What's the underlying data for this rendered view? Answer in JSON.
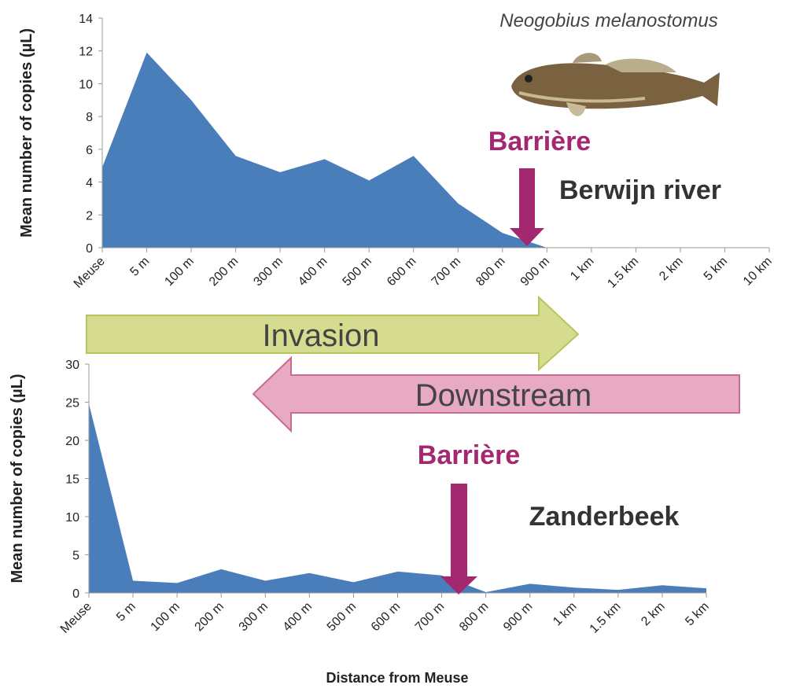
{
  "chart_data": [
    {
      "type": "area",
      "color": "#4a7ebb",
      "y_label": "Mean number of copies (µL)",
      "categories": [
        "Meuse",
        "5 m",
        "100 m",
        "200 m",
        "300 m",
        "400 m",
        "500 m",
        "600 m",
        "700 m",
        "800 m",
        "900 m",
        "1 km",
        "1.5 km",
        "2 km",
        "5 km",
        "10 km"
      ],
      "values": [
        4.9,
        11.9,
        9.0,
        5.6,
        4.6,
        5.4,
        4.1,
        5.6,
        2.7,
        0.9,
        0,
        0,
        0,
        0,
        0,
        0
      ],
      "ylim": [
        0,
        14
      ],
      "yticks": [
        0,
        2,
        4,
        6,
        8,
        10,
        12,
        14
      ],
      "annotations": [
        "Neogobius melanostomus",
        "Barrière",
        "Berwijn river",
        "Invasion"
      ]
    },
    {
      "type": "area",
      "color": "#4a7ebb",
      "y_label": "Mean number of copies (µL)",
      "x_label": "Distance from Meuse",
      "categories": [
        "Meuse",
        "5 m",
        "100 m",
        "200 m",
        "300 m",
        "400 m",
        "500 m",
        "600 m",
        "700 m",
        "800 m",
        "900 m",
        "1 km",
        "1.5 km",
        "2 km",
        "5 km"
      ],
      "values": [
        24.8,
        1.6,
        1.3,
        3.1,
        1.6,
        2.6,
        1.4,
        2.8,
        2.3,
        0.1,
        1.2,
        0.7,
        0.4,
        1.0,
        0.6
      ],
      "ylim": [
        0,
        30
      ],
      "yticks": [
        0,
        5,
        10,
        15,
        20,
        25,
        30
      ],
      "annotations": [
        "Downstream",
        "Barrière",
        "Zanderbeek"
      ]
    }
  ]
}
